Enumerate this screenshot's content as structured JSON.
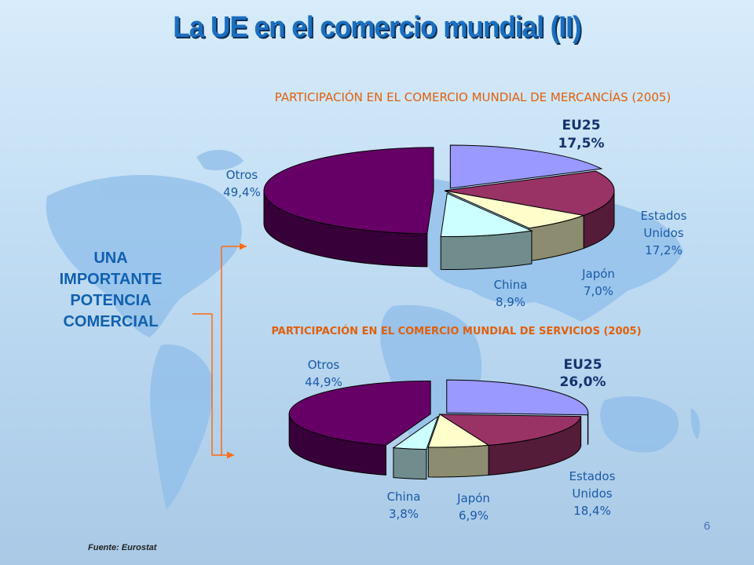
{
  "slide": {
    "title": "La UE en el comercio mundial (II)",
    "side_label": [
      "UNA",
      "IMPORTANTE",
      "POTENCIA",
      "COMERCIAL"
    ],
    "source": "Fuente: Eurostat",
    "page_number": "6",
    "colors": {
      "title": "#1a6fc0",
      "side_label": "#1060b0",
      "chart_titles": "#e0600c",
      "connector": "#ff6a10"
    }
  },
  "chart_data": [
    {
      "type": "pie",
      "title": "PARTICIPACIÓN EN EL COMERCIO  MUNDIAL DE MERCANCÍAS (2005)",
      "unit": "%",
      "slices": [
        {
          "label": "EU25",
          "value": 17.5,
          "value_label": "17,5%",
          "exploded": true,
          "color": "#9999ff"
        },
        {
          "label": "Estados Unidos",
          "value": 17.2,
          "value_label": "17,2%",
          "color": "#993366"
        },
        {
          "label": "Japón",
          "value": 7.0,
          "value_label": "7,0%",
          "color": "#ffffcc"
        },
        {
          "label": "China",
          "value": 8.9,
          "value_label": "8,9%",
          "exploded": true,
          "color": "#ccffff"
        },
        {
          "label": "Otros",
          "value": 49.4,
          "value_label": "49,4%",
          "exploded": true,
          "color": "#660066"
        }
      ]
    },
    {
      "type": "pie",
      "title": "PARTICIPACIÓN EN EL COMERCIO MUNDIAL DE SERVICIOS (2005)",
      "unit": "%",
      "slices": [
        {
          "label": "EU25",
          "value": 26.0,
          "value_label": "26,0%",
          "exploded": true,
          "color": "#9999ff"
        },
        {
          "label": "Estados Unidos",
          "value": 18.4,
          "value_label": "18,4%",
          "color": "#993366"
        },
        {
          "label": "Japón",
          "value": 6.9,
          "value_label": "6,9%",
          "color": "#ffffcc"
        },
        {
          "label": "China",
          "value": 3.8,
          "value_label": "3,8%",
          "exploded": true,
          "color": "#ccffff"
        },
        {
          "label": "Otros",
          "value": 44.9,
          "value_label": "44,9%",
          "exploded": true,
          "color": "#660066"
        }
      ]
    }
  ]
}
